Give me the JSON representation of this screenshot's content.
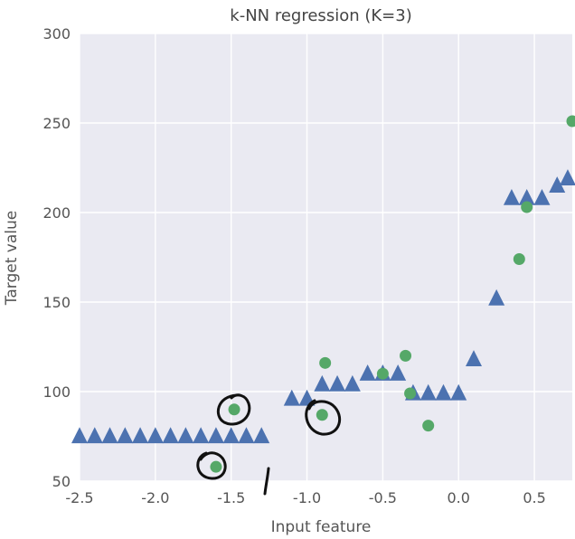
{
  "chart_data": {
    "type": "scatter",
    "title": "k-NN regression (K=3)",
    "xlabel": "Input feature",
    "ylabel": "Target value",
    "xlim": [
      -2.5,
      0.75
    ],
    "ylim": [
      50,
      300
    ],
    "xticks": [
      -2.5,
      -2.0,
      -1.5,
      -1.0,
      -0.5,
      0.0,
      0.5
    ],
    "xtick_labels": [
      "-2.5",
      "-2.0",
      "-1.5",
      "-1.0",
      "-0.5",
      "0.0",
      "0.5"
    ],
    "yticks": [
      50,
      100,
      150,
      200,
      250,
      300
    ],
    "ytick_labels": [
      "50",
      "100",
      "150",
      "200",
      "250",
      "300"
    ],
    "grid": true,
    "legend": "none",
    "series": [
      {
        "marker": "triangle",
        "color": "#4c72b0",
        "x": [
          -2.5,
          -2.4,
          -2.3,
          -2.2,
          -2.1,
          -2.0,
          -1.9,
          -1.8,
          -1.7,
          -1.6,
          -1.5,
          -1.4,
          -1.3,
          -1.1,
          -1.0,
          -0.9,
          -0.8,
          -0.7,
          -0.6,
          -0.5,
          -0.4,
          -0.3,
          -0.2,
          -0.1,
          0.0,
          0.1,
          0.25,
          0.35,
          0.45,
          0.55,
          0.65,
          0.72
        ],
        "y": [
          75,
          75,
          75,
          75,
          75,
          75,
          75,
          75,
          75,
          75,
          75,
          75,
          75,
          96,
          96,
          104,
          104,
          104,
          110,
          110,
          110,
          99,
          99,
          99,
          99,
          118,
          152,
          208,
          208,
          208,
          215,
          219
        ]
      },
      {
        "marker": "circle",
        "color": "#55a868",
        "x": [
          -1.6,
          -1.48,
          -0.9,
          -0.88,
          -0.5,
          -0.35,
          -0.32,
          -0.2,
          0.4,
          0.45,
          0.75
        ],
        "y": [
          58,
          90,
          87,
          116,
          110,
          120,
          99,
          81,
          174,
          203,
          251
        ]
      }
    ]
  }
}
